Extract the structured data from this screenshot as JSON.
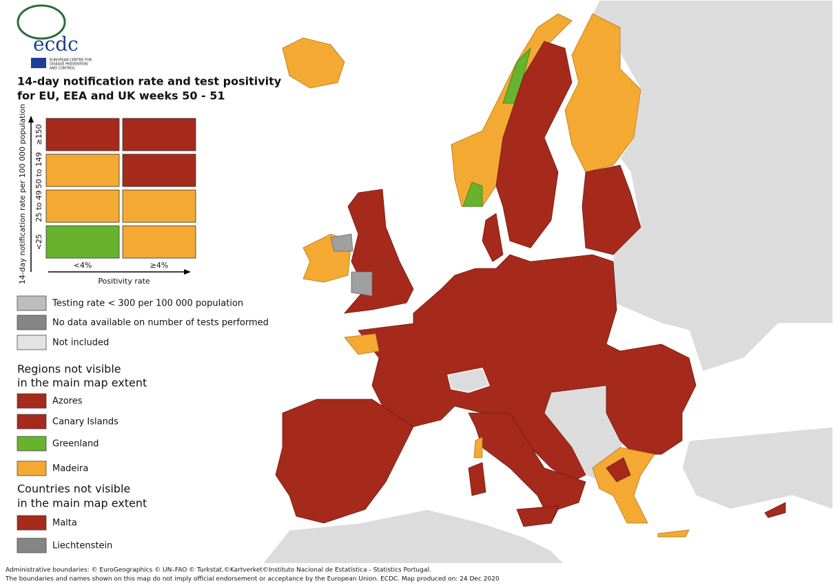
{
  "header": {
    "logo": "ecdc",
    "logo_caption": [
      "EUROPEAN CENTRE FOR",
      "DISEASE PREVENTION",
      "AND CONTROL"
    ],
    "title": [
      "14-day notification rate and test positivity",
      "for EU, EEA and UK weeks 50 - 51"
    ]
  },
  "matrix": {
    "y_label": "14-day notification rate per 100 000 population",
    "x_label": "Positivity rate",
    "rows": [
      "≥150",
      "50 to 149",
      "25 to 49",
      "<25"
    ],
    "columns": [
      "<4%",
      "≥4%"
    ],
    "cells": [
      [
        "#a52a1b",
        "#a52a1b"
      ],
      [
        "#f4a932",
        "#a52a1b"
      ],
      [
        "#f4a932",
        "#f4a932"
      ],
      [
        "#67b32e",
        "#f4a932"
      ]
    ]
  },
  "legend": {
    "items": [
      {
        "label": "Testing rate < 300 per 100 000 population",
        "color": "#bdbdbd"
      },
      {
        "label": "No data available on number of tests performed",
        "color": "#858585"
      },
      {
        "label": "Not included",
        "color": "#e3e3e3"
      }
    ]
  },
  "regions": {
    "heading": [
      "Regions not visible",
      "in the main map extent"
    ],
    "items": [
      {
        "label": "Azores",
        "color": "#a52a1b"
      },
      {
        "label": "Canary Islands",
        "color": "#a52a1b"
      },
      {
        "label": "Greenland",
        "color": "#67b32e"
      },
      {
        "label": "Madeira",
        "color": "#f4a932"
      }
    ]
  },
  "countries": {
    "heading": [
      "Countries not visible",
      "in the main map extent"
    ],
    "items": [
      {
        "label": "Malta",
        "color": "#a52a1b"
      },
      {
        "label": "Liechtenstein",
        "color": "#858585"
      }
    ]
  },
  "footer": [
    "Administrative boundaries: © EuroGeographics © UN–FAO © Turkstat.©Kartverket©Instituto Nacional de Estatística - Statistics Portugal.",
    "The boundaries and names shown on this map do not imply official endorsement or acceptance by the European Union. ECDC. Map produced on: 24 Dec 2020"
  ]
}
